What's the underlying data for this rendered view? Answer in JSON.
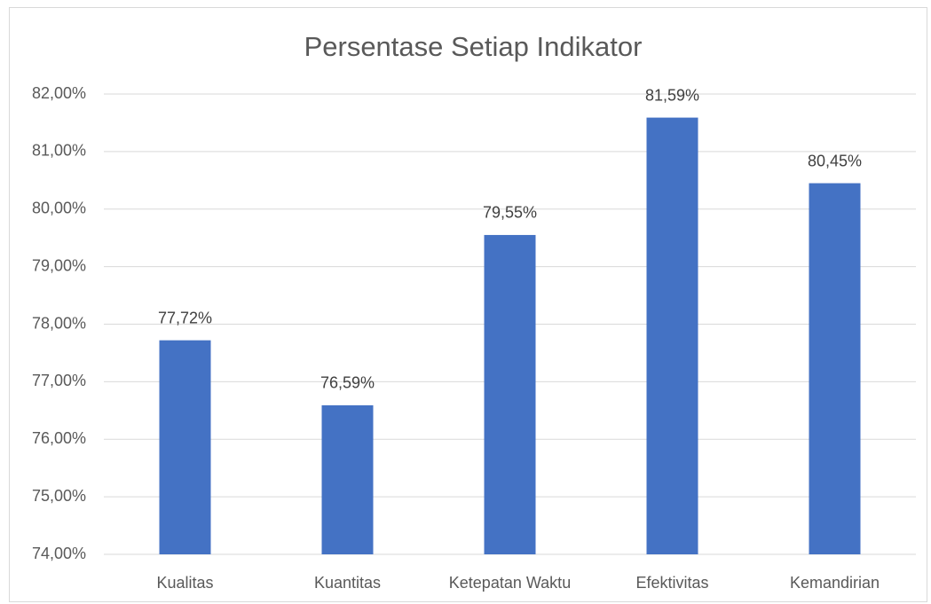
{
  "chart_data": {
    "type": "bar",
    "title": "Persentase Setiap Indikator",
    "categories": [
      "Kualitas",
      "Kuantitas",
      "Ketepatan Waktu",
      "Efektivitas",
      "Kemandirian"
    ],
    "values": [
      77.72,
      76.59,
      79.55,
      81.59,
      80.45
    ],
    "value_labels": [
      "77,72%",
      "76,59%",
      "79,55%",
      "81,59%",
      "80,45%"
    ],
    "color": "#4472c4",
    "ylim": [
      74,
      82
    ],
    "yticks": [
      {
        "value": 74,
        "label": "74,00%"
      },
      {
        "value": 75,
        "label": "75,00%"
      },
      {
        "value": 76,
        "label": "76,00%"
      },
      {
        "value": 77,
        "label": "77,00%"
      },
      {
        "value": 78,
        "label": "78,00%"
      },
      {
        "value": 79,
        "label": "79,00%"
      },
      {
        "value": 80,
        "label": "80,00%"
      },
      {
        "value": 81,
        "label": "81,00%"
      },
      {
        "value": 82,
        "label": "82,00%"
      }
    ],
    "grid": true
  }
}
